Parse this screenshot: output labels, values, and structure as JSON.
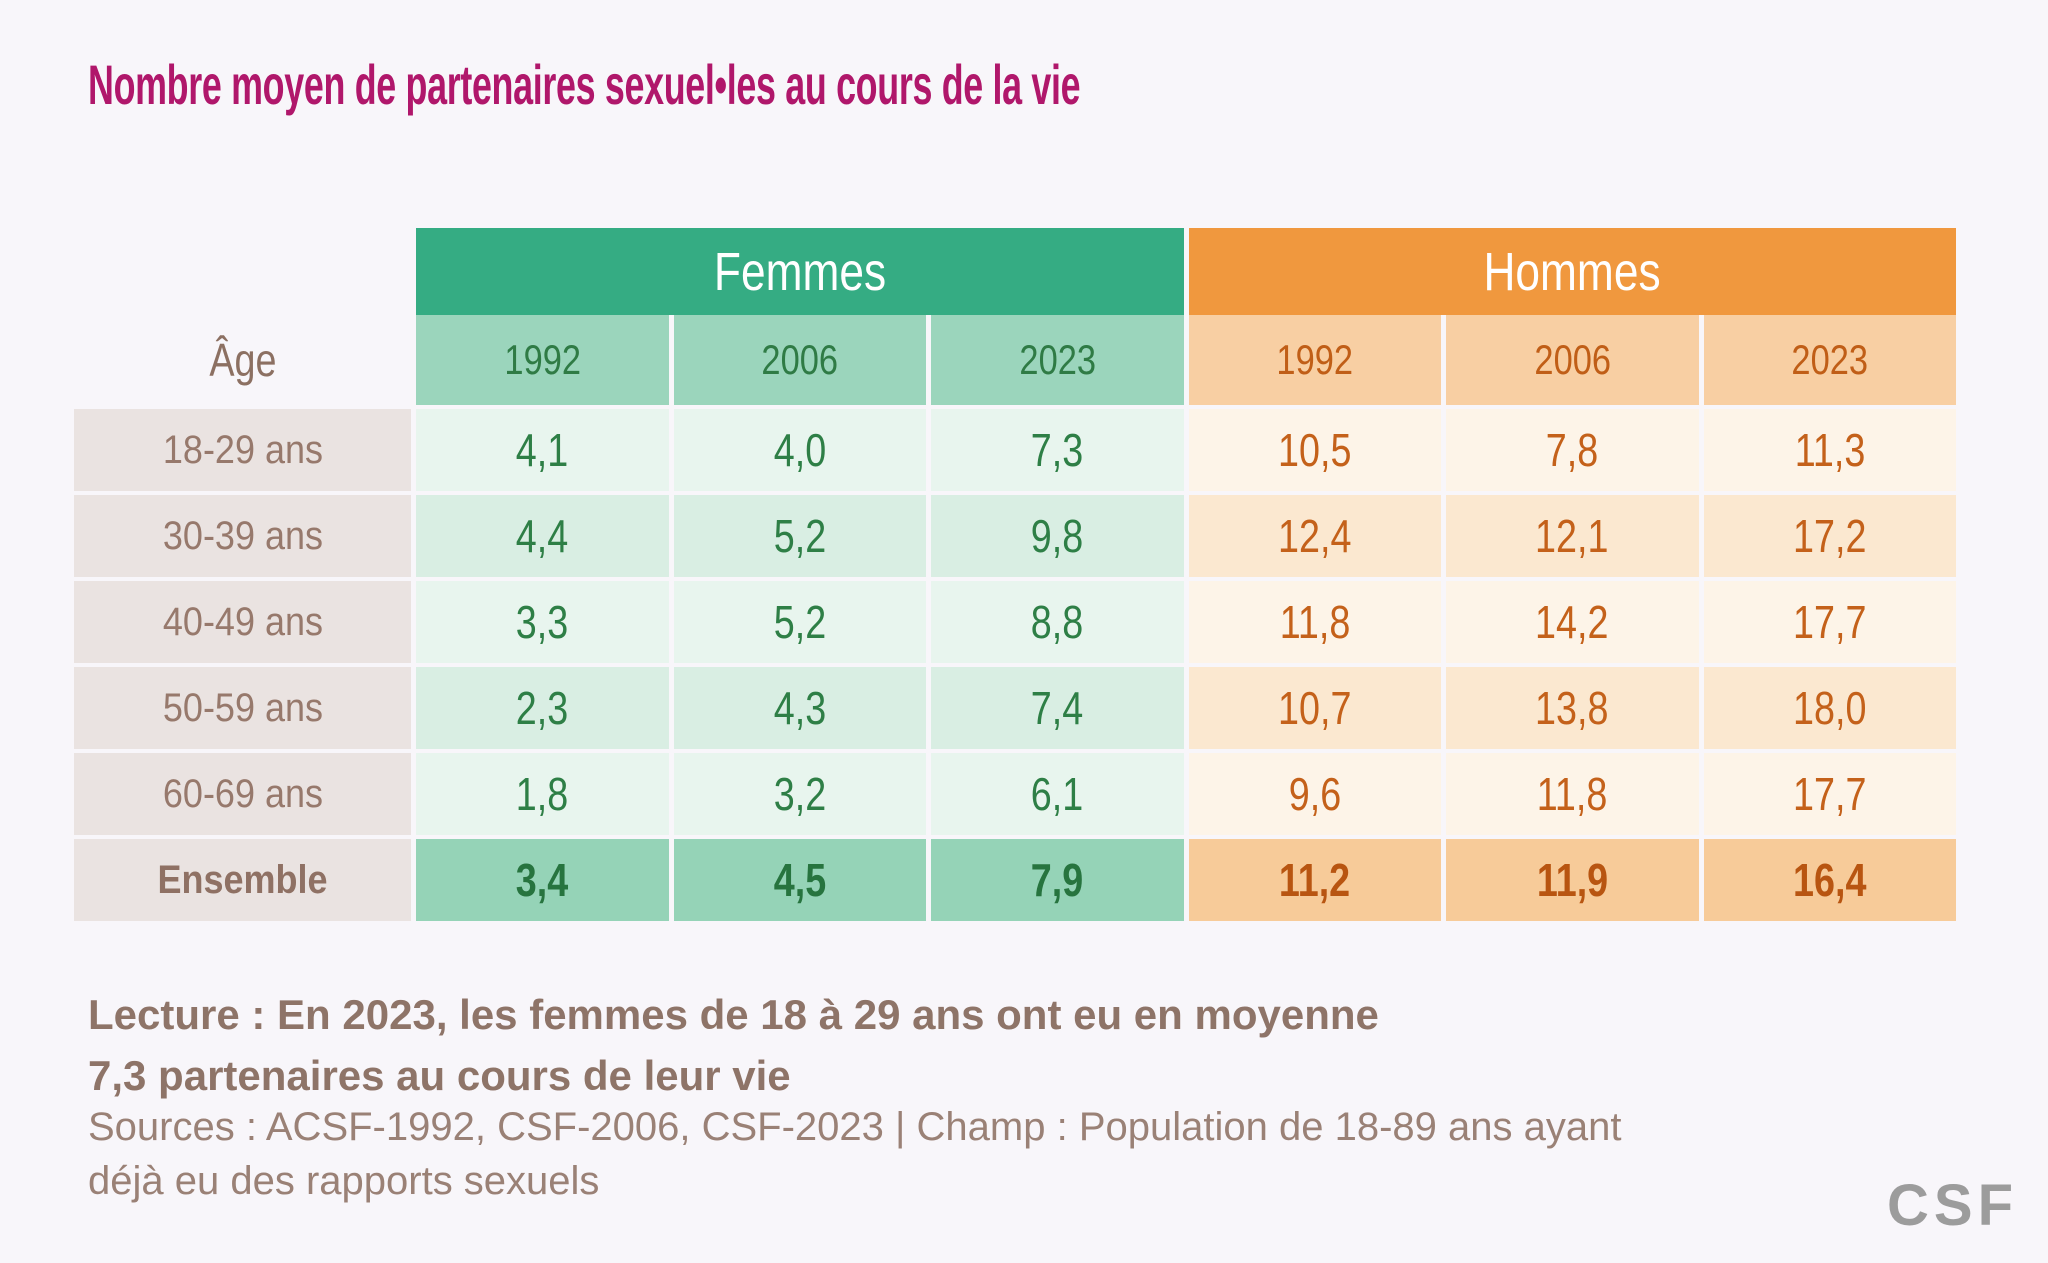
{
  "title": {
    "text": "Nombre moyen de partenaires sexuel•les au cours de la vie"
  },
  "table": {
    "age_header": "Âge",
    "femmes": {
      "label": "Femmes",
      "years": [
        "1992",
        "2006",
        "2023"
      ],
      "colors": {
        "header": "#35ac83",
        "subheader": "#9bd5bc",
        "row_light": "#e8f5ee",
        "row_alt": "#d9eee3",
        "ensemble": "#95d3b7",
        "value_text": "#2e7f46"
      }
    },
    "hommes": {
      "label": "Hommes",
      "years": [
        "1992",
        "2006",
        "2023"
      ],
      "colors": {
        "header": "#f0983e",
        "subheader": "#f8cfa3",
        "row_light": "#fdf4e8",
        "row_alt": "#fbe8d0",
        "ensemble": "#f7cb99",
        "value_text": "#c4611a"
      }
    },
    "rows": [
      {
        "label": "18-29 ans",
        "femmes": [
          "4,1",
          "4,0",
          "7,3"
        ],
        "hommes": [
          "10,5",
          "7,8",
          "11,3"
        ]
      },
      {
        "label": "30-39 ans",
        "femmes": [
          "4,4",
          "5,2",
          "9,8"
        ],
        "hommes": [
          "12,4",
          "12,1",
          "17,2"
        ]
      },
      {
        "label": "40-49 ans",
        "femmes": [
          "3,3",
          "5,2",
          "8,8"
        ],
        "hommes": [
          "11,8",
          "14,2",
          "17,7"
        ]
      },
      {
        "label": "50-59 ans",
        "femmes": [
          "2,3",
          "4,3",
          "7,4"
        ],
        "hommes": [
          "10,7",
          "13,8",
          "18,0"
        ]
      },
      {
        "label": "60-69 ans",
        "femmes": [
          "1,8",
          "3,2",
          "6,1"
        ],
        "hommes": [
          "9,6",
          "11,8",
          "17,7"
        ]
      }
    ],
    "ensemble_row": {
      "label": "Ensemble",
      "femmes": [
        "3,4",
        "4,5",
        "7,9"
      ],
      "hommes": [
        "11,2",
        "11,9",
        "16,4"
      ]
    }
  },
  "notes": {
    "lecture_line1": "Lecture : En 2023, les femmes de 18 à 29 ans ont eu en moyenne",
    "lecture_line2": "7,3 partenaires au cours de leur vie",
    "sources_line1": "Sources : ACSF-1992, CSF-2006, CSF-2023 | Champ : Population de 18-89 ans ayant",
    "sources_line2": "déjà eu des rapports sexuels"
  },
  "logo": {
    "text": "CSF"
  },
  "chart_data": {
    "type": "table",
    "title": "Nombre moyen de partenaires sexuel•les au cours de la vie",
    "row_header": "Âge",
    "column_groups": [
      "Femmes",
      "Hommes"
    ],
    "years": [
      "1992",
      "2006",
      "2023"
    ],
    "categories": [
      "18-29 ans",
      "30-39 ans",
      "40-49 ans",
      "50-59 ans",
      "60-69 ans",
      "Ensemble"
    ],
    "series": [
      {
        "name": "Femmes 1992",
        "values": [
          4.1,
          4.4,
          3.3,
          2.3,
          1.8,
          3.4
        ]
      },
      {
        "name": "Femmes 2006",
        "values": [
          4.0,
          5.2,
          5.2,
          4.3,
          3.2,
          4.5
        ]
      },
      {
        "name": "Femmes 2023",
        "values": [
          7.3,
          9.8,
          8.8,
          7.4,
          6.1,
          7.9
        ]
      },
      {
        "name": "Hommes 1992",
        "values": [
          10.5,
          12.4,
          11.8,
          10.7,
          9.6,
          11.2
        ]
      },
      {
        "name": "Hommes 2006",
        "values": [
          7.8,
          12.1,
          14.2,
          13.8,
          11.8,
          11.9
        ]
      },
      {
        "name": "Hommes 2023",
        "values": [
          11.3,
          17.2,
          17.7,
          18.0,
          17.7,
          16.4
        ]
      }
    ],
    "notes": "Lecture : En 2023, les femmes de 18 à 29 ans ont eu en moyenne 7,3 partenaires au cours de leur vie",
    "source": "Sources : ACSF-1992, CSF-2006, CSF-2023 | Champ : Population de 18-89 ans ayant déjà eu des rapports sexuels"
  }
}
